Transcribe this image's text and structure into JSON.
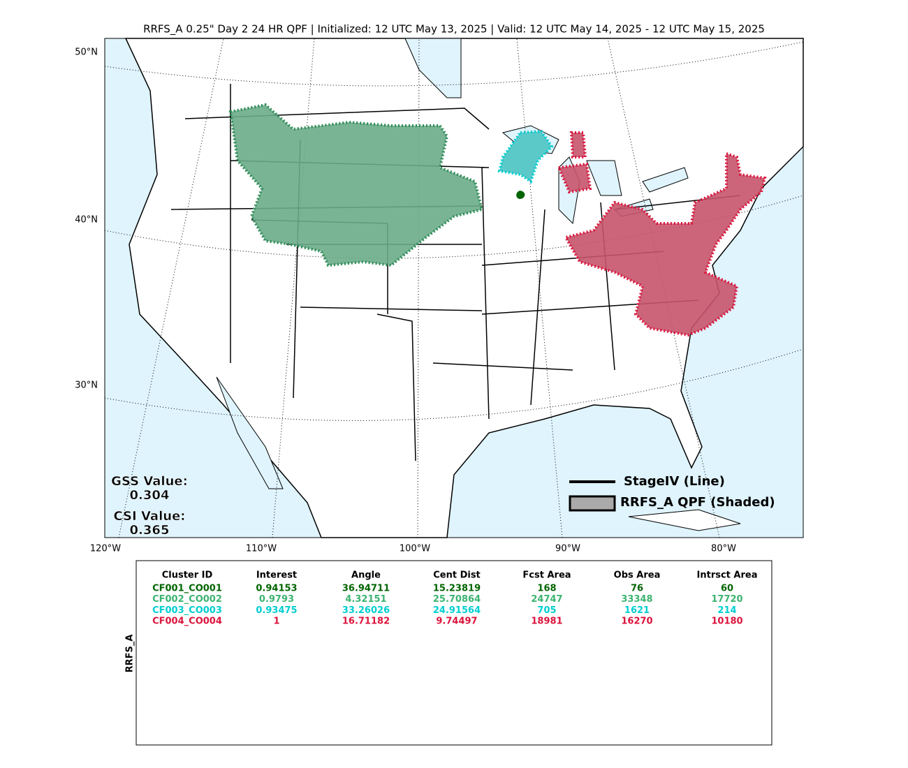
{
  "title": "RRFS_A 0.25\" Day 2 24 HR QPF | Initialized: 12 UTC May 13, 2025 | Valid: 12 UTC May 14, 2025 - 12 UTC May 15, 2025",
  "map": {
    "lat_labels": [
      "50°N",
      "40°N",
      "30°N"
    ],
    "lon_labels": [
      "120°W",
      "110°W",
      "100°W",
      "90°W",
      "80°W"
    ],
    "gss": {
      "label": "GSS Value:",
      "value": "0.304"
    },
    "csi": {
      "label": "CSI Value:",
      "value": "0.365"
    },
    "legend": [
      "StageIV (Line)",
      "RRFS_A QPF (Shaded)"
    ]
  },
  "table": {
    "side_label": "RRFS_A",
    "columns": [
      "Cluster ID",
      "Interest",
      "Angle",
      "Cent Dist",
      "Fcst Area",
      "Obs Area",
      "Intrsct Area"
    ],
    "rows": [
      {
        "color": "#006400",
        "cells": [
          "CF001_CO001",
          "0.94153",
          "36.94711",
          "15.23819",
          "168",
          "76",
          "60"
        ]
      },
      {
        "color": "#3cb371",
        "cells": [
          "CF002_CO002",
          "0.9793",
          "4.32151",
          "25.70864",
          "24747",
          "33348",
          "17720"
        ]
      },
      {
        "color": "#00ced1",
        "cells": [
          "CF003_CO003",
          "0.93475",
          "33.26026",
          "24.91564",
          "705",
          "1621",
          "214"
        ]
      },
      {
        "color": "#dc143c",
        "cells": [
          "CF004_CO004",
          "1",
          "16.71182",
          "9.74497",
          "18981",
          "16270",
          "10180"
        ]
      }
    ]
  }
}
